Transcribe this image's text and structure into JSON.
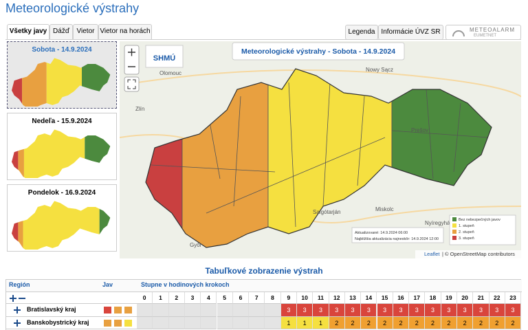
{
  "header": {
    "title": "Meteorologické výstrahy"
  },
  "tabs": [
    "Všetky javy",
    "Dážď",
    "Vietor",
    "Vietor na horách"
  ],
  "buttons": [
    "Legenda",
    "Informácie ÚVZ SR"
  ],
  "meteoalarm": {
    "name": "METEOALARM",
    "sub": "EUMETNET"
  },
  "days": [
    "Sobota - 14.9.2024",
    "Nedeľa - 15.9.2024",
    "Pondelok - 16.9.2024"
  ],
  "map": {
    "title": "Meteorologické výstrahy - Sobota - 14.9.2024",
    "logo": "SHMÚ",
    "cities": [
      "Olomouc",
      "Nowy Sącz",
      "Zlín",
      "Prešov",
      "Miskolc",
      "Salgótarján",
      "Nyíregyháza",
      "Győr"
    ],
    "legend": [
      "Bez nebezpečných javov",
      "1. stupeň",
      "2. stupeň",
      "3. stupeň"
    ],
    "updated": "Aktualizované: 14.9.2024 06:00",
    "next": "Najbližšia aktualizácia najneskôr: 14.9.2024 12:00",
    "attribution": {
      "leaflet": "Leaflet",
      "osm": "| © OpenStreetMap contributors"
    }
  },
  "table": {
    "title": "Tabuľkové zobrazenie výstrah",
    "headers": [
      "Región",
      "Jav",
      "Stupne v hodinových krokoch"
    ],
    "hours": [
      0,
      1,
      2,
      3,
      4,
      5,
      6,
      7,
      8,
      9,
      10,
      11,
      12,
      13,
      14,
      15,
      16,
      17,
      18,
      19,
      20,
      21,
      22,
      23
    ],
    "rows": [
      {
        "name": "Bratislavský kraj",
        "levels": [
          null,
          null,
          null,
          null,
          null,
          null,
          null,
          null,
          null,
          3,
          3,
          3,
          3,
          3,
          3,
          3,
          3,
          3,
          3,
          3,
          3,
          3,
          3,
          3
        ]
      },
      {
        "name": "Banskobystrický kraj",
        "levels": [
          null,
          null,
          null,
          null,
          null,
          null,
          null,
          null,
          null,
          1,
          1,
          1,
          2,
          2,
          2,
          2,
          2,
          2,
          2,
          2,
          2,
          2,
          2,
          2
        ]
      }
    ]
  }
}
